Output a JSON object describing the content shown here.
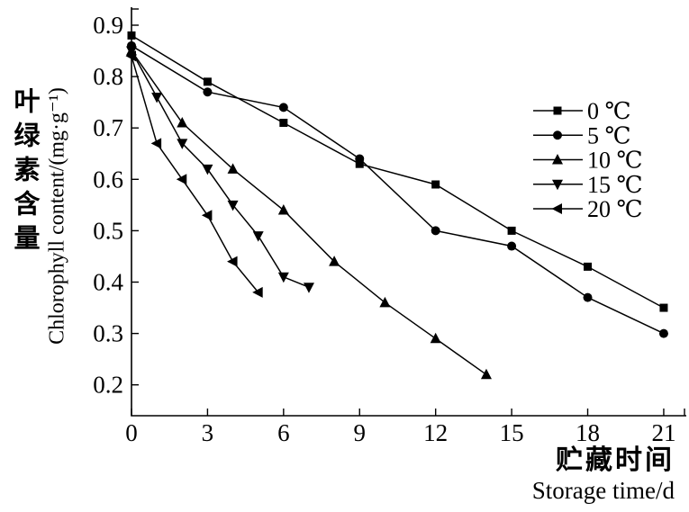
{
  "chart_data": {
    "type": "line",
    "title": "",
    "background_color": "#ffffff",
    "line_color": "#000000",
    "grid": false,
    "legend_position": "upper right",
    "x_axis": {
      "label_zh": "贮藏时间",
      "label_en": "Storage time/d",
      "ticks": [
        0,
        3,
        6,
        9,
        12,
        15,
        18,
        21
      ],
      "range": [
        0,
        21.8
      ]
    },
    "y_axis": {
      "label_zh": "叶绿素含量",
      "label_en": "Chlorophyll content/(mg·g⁻¹)",
      "ticks": [
        0.9,
        0.8,
        0.7,
        0.6,
        0.5,
        0.4,
        0.3,
        0.2
      ],
      "range": [
        0.14,
        0.935
      ]
    },
    "series": [
      {
        "id": "0c",
        "name": "0 ℃",
        "marker": "square",
        "x": [
          0,
          3,
          6,
          9,
          12,
          15,
          18,
          21
        ],
        "y": [
          0.88,
          0.79,
          0.71,
          0.63,
          0.59,
          0.5,
          0.43,
          0.35
        ]
      },
      {
        "id": "5c",
        "name": "5 ℃",
        "marker": "circle",
        "x": [
          0,
          3,
          6,
          9,
          12,
          15,
          18,
          21
        ],
        "y": [
          0.86,
          0.77,
          0.74,
          0.64,
          0.5,
          0.47,
          0.37,
          0.3
        ]
      },
      {
        "id": "10c",
        "name": "10 ℃",
        "marker": "triangle-up",
        "x": [
          0,
          2,
          4,
          6,
          8,
          10,
          12,
          14
        ],
        "y": [
          0.85,
          0.71,
          0.62,
          0.54,
          0.44,
          0.36,
          0.29,
          0.22
        ]
      },
      {
        "id": "15c",
        "name": "15 ℃",
        "marker": "triangle-down",
        "x": [
          0,
          1,
          2,
          3,
          4,
          5,
          6,
          7
        ],
        "y": [
          0.85,
          0.76,
          0.67,
          0.62,
          0.55,
          0.49,
          0.41,
          0.39
        ]
      },
      {
        "id": "20c",
        "name": "20 ℃",
        "marker": "triangle-left",
        "x": [
          0,
          1,
          2,
          3,
          4,
          5
        ],
        "y": [
          0.84,
          0.67,
          0.6,
          0.53,
          0.44,
          0.38
        ]
      }
    ]
  }
}
